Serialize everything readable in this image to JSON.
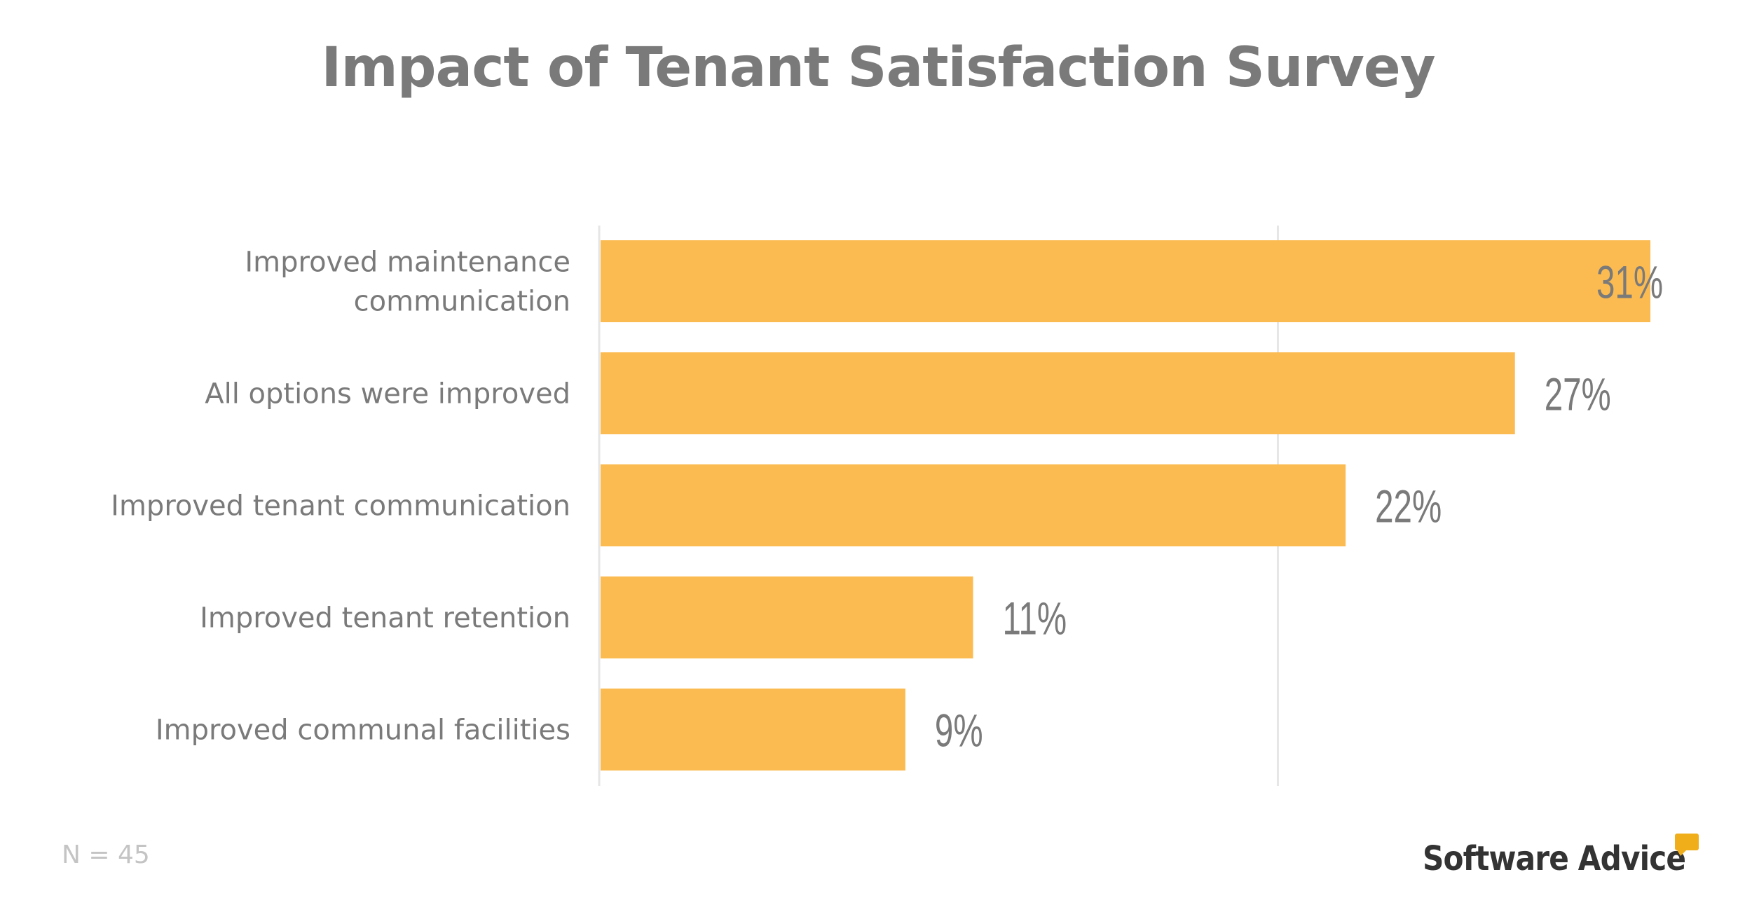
{
  "chart_data": {
    "type": "bar",
    "orientation": "horizontal",
    "title": "Impact of Tenant Satisfaction Survey",
    "categories": [
      [
        "Improved maintenance",
        "communication"
      ],
      [
        "All options were improved"
      ],
      [
        "Improved tenant communication"
      ],
      [
        "Improved tenant retention"
      ],
      [
        "Improved communal facilities"
      ]
    ],
    "values": [
      31,
      27,
      22,
      11,
      9
    ],
    "value_labels": [
      "31%",
      "27%",
      "22%",
      "11%",
      "9%"
    ],
    "xlim": [
      0,
      31
    ],
    "gridlines": [
      20
    ],
    "grid": true,
    "bar_color": "#fcbb50",
    "axis_color": "#e6e6e6",
    "text_color": "#7a7a7a"
  },
  "footnote": "N = 45",
  "logo": {
    "text": "Software Advice",
    "accent_color": "#f0ae1a"
  }
}
